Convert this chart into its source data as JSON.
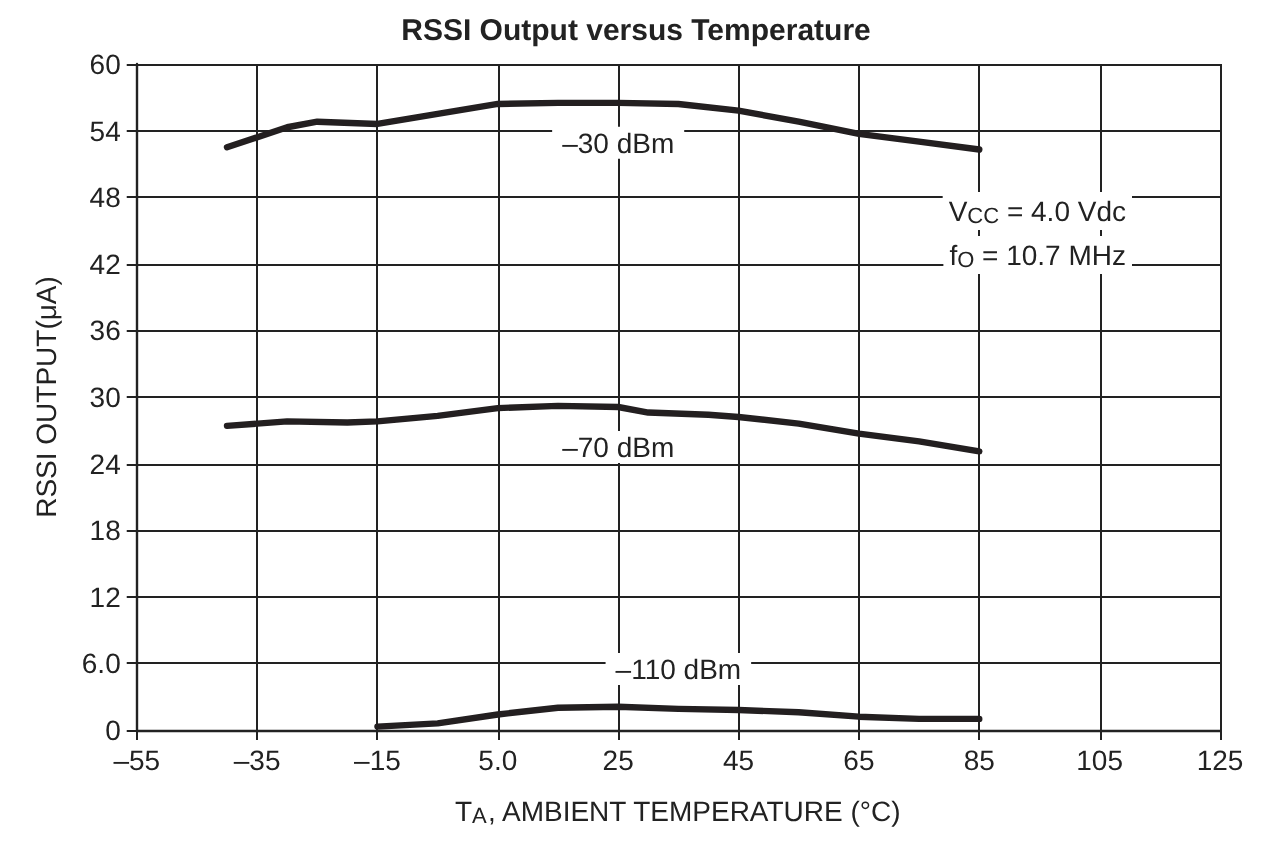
{
  "chart_data": {
    "type": "line",
    "title": "RSSI Output versus Temperature",
    "xlabel": "T$_{A}$, AMBIENT TEMPERATURE (°C)",
    "ylabel": "RSSI OUTPUT(μA)",
    "xlim": [
      -55,
      125
    ],
    "xticks": [
      {
        "value": -55,
        "label": "–55"
      },
      {
        "value": -35,
        "label": "–35"
      },
      {
        "value": -15,
        "label": "–15"
      },
      {
        "value": 5,
        "label": "5.0"
      },
      25,
      45,
      65,
      85,
      105,
      125
    ],
    "ylim": [
      0,
      60
    ],
    "yticks": [
      0,
      {
        "value": 6,
        "label": "6.0"
      },
      12,
      18,
      24,
      30,
      36,
      42,
      48,
      54,
      60
    ],
    "grid": true,
    "marker": "none",
    "line_style": "solid",
    "series": [
      {
        "name": "–30 dBm",
        "color": "#231f20",
        "x": [
          -40,
          -30,
          -25,
          -15,
          -5,
          5,
          15,
          25,
          35,
          45,
          55,
          65,
          75,
          85
        ],
        "values": [
          52.5,
          54.3,
          54.8,
          54.6,
          55.5,
          56.4,
          56.5,
          56.5,
          56.4,
          55.8,
          54.8,
          53.7,
          53.0,
          52.3
        ]
      },
      {
        "name": "–70 dBm",
        "color": "#231f20",
        "x": [
          -40,
          -30,
          -20,
          -15,
          -5,
          5,
          15,
          25,
          30,
          40,
          45,
          55,
          65,
          75,
          85
        ],
        "values": [
          27.4,
          27.8,
          27.7,
          27.8,
          28.3,
          29.0,
          29.2,
          29.1,
          28.6,
          28.4,
          28.2,
          27.6,
          26.7,
          26.0,
          25.1
        ]
      },
      {
        "name": "–110 dBm",
        "color": "#231f20",
        "x": [
          -15,
          -5,
          5,
          15,
          25,
          35,
          45,
          55,
          65,
          75,
          85
        ],
        "values": [
          0.3,
          0.6,
          1.4,
          2.0,
          2.1,
          1.9,
          1.8,
          1.6,
          1.2,
          1.0,
          1.0
        ]
      }
    ],
    "annotations": [
      "V$_{CC}$ = 4.0 Vdc",
      "f$_{O}$ = 10.7 MHz"
    ]
  }
}
